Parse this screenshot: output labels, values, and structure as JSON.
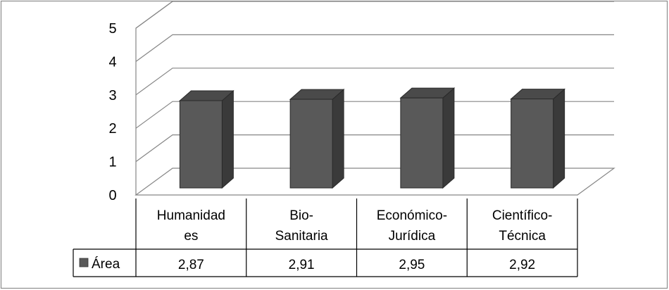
{
  "chart_data": {
    "type": "bar",
    "style": "3d-column-with-data-table",
    "categories": [
      "Humanidades",
      "Bio-Sanitaria",
      "Económico-Jurídica",
      "Científico-Técnica"
    ],
    "category_display_lines": [
      [
        "Humanidad",
        "es"
      ],
      [
        "Bio-",
        "Sanitaria"
      ],
      [
        "Económico-",
        "Jurídica"
      ],
      [
        "Científico-",
        "Técnica"
      ]
    ],
    "series": [
      {
        "name": "Área",
        "values": [
          2.87,
          2.91,
          2.95,
          2.92
        ],
        "value_labels": [
          "2,87",
          "2,91",
          "2,95",
          "2,92"
        ]
      }
    ],
    "y_ticks": [
      "0",
      "1",
      "2",
      "3",
      "4",
      "5"
    ],
    "ylim": [
      0,
      5
    ],
    "grid": true,
    "legend": "data-table",
    "colors": {
      "bar_front": "#595959",
      "bar_side": "#3a3a3a",
      "bar_top": "#4a4a4a",
      "grid": "#868686",
      "frame": "#8c8c8c",
      "legend_key": "#595959"
    }
  }
}
